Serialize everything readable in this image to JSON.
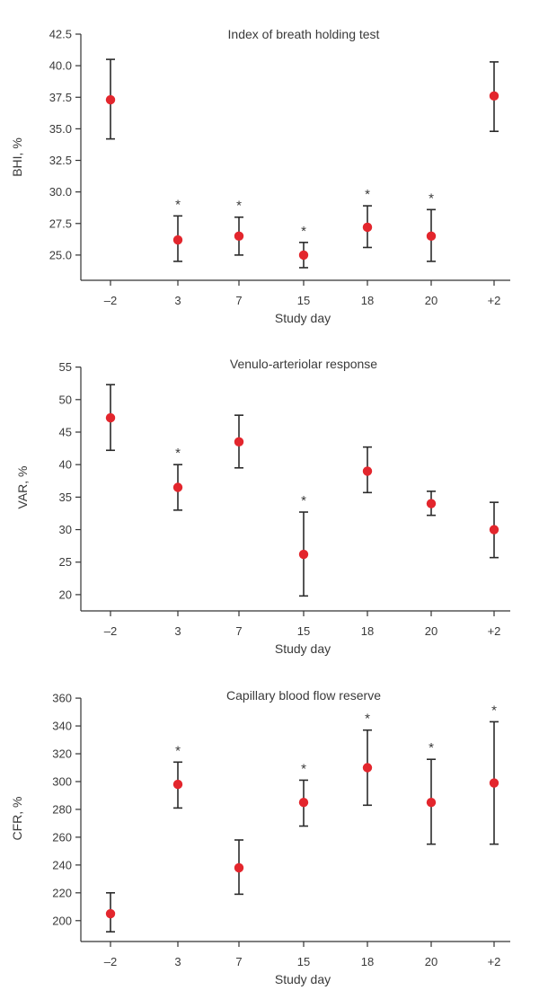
{
  "chart_data": [
    {
      "type": "scatter",
      "title": "Index of  breath holding test",
      "xlabel": "Study day",
      "ylabel": "BHI, %",
      "categories": [
        "–2",
        "3",
        "7",
        "15",
        "18",
        "20",
        "+2"
      ],
      "yticks": [
        "25.0",
        "27.5",
        "30.0",
        "32.5",
        "35.0",
        "37.5",
        "40.0",
        "42.5"
      ],
      "ylim": [
        23.0,
        42.5
      ],
      "grid": false,
      "marker_color": "#e3262d",
      "series": [
        {
          "values": [
            37.3,
            26.2,
            26.5,
            25.0,
            27.2,
            26.5,
            37.6
          ],
          "err_low": [
            34.2,
            24.5,
            25.0,
            24.0,
            25.6,
            24.5,
            34.8
          ],
          "err_high": [
            40.5,
            28.1,
            28.0,
            26.0,
            28.9,
            28.6,
            40.3
          ],
          "significant": [
            false,
            true,
            true,
            true,
            true,
            true,
            false
          ]
        }
      ]
    },
    {
      "type": "scatter",
      "title": "Venulo-arteriolar response",
      "xlabel": "Study day",
      "ylabel": "VAR, %",
      "categories": [
        "–2",
        "3",
        "7",
        "15",
        "18",
        "20",
        "+2"
      ],
      "yticks": [
        "20",
        "25",
        "30",
        "35",
        "40",
        "45",
        "50",
        "55"
      ],
      "ylim": [
        17.5,
        55.5
      ],
      "grid": false,
      "marker_color": "#e3262d",
      "series": [
        {
          "values": [
            47.2,
            36.5,
            43.5,
            26.2,
            39.0,
            34.0,
            30.0
          ],
          "err_low": [
            42.2,
            33.0,
            39.5,
            19.8,
            35.7,
            32.2,
            25.7
          ],
          "err_high": [
            52.3,
            40.0,
            47.6,
            32.7,
            42.7,
            35.9,
            34.2
          ],
          "significant": [
            false,
            true,
            false,
            true,
            false,
            false,
            false
          ]
        }
      ]
    },
    {
      "type": "scatter",
      "title": "Capillary blood flow reserve",
      "xlabel": "Study day",
      "ylabel": "CFR, %",
      "categories": [
        "–2",
        "3",
        "7",
        "15",
        "18",
        "20",
        "+2"
      ],
      "yticks": [
        "200",
        "220",
        "240",
        "260",
        "280",
        "300",
        "320",
        "340",
        "360"
      ],
      "ylim": [
        185,
        362
      ],
      "grid": false,
      "marker_color": "#e3262d",
      "series": [
        {
          "values": [
            205,
            298,
            238,
            285,
            310,
            285,
            299
          ],
          "err_low": [
            192,
            281,
            219,
            268,
            283,
            255,
            255
          ],
          "err_high": [
            220,
            314,
            258,
            301,
            337,
            316,
            343
          ],
          "significant": [
            false,
            true,
            false,
            true,
            true,
            true,
            true
          ]
        }
      ]
    }
  ],
  "significance_marker": "*"
}
